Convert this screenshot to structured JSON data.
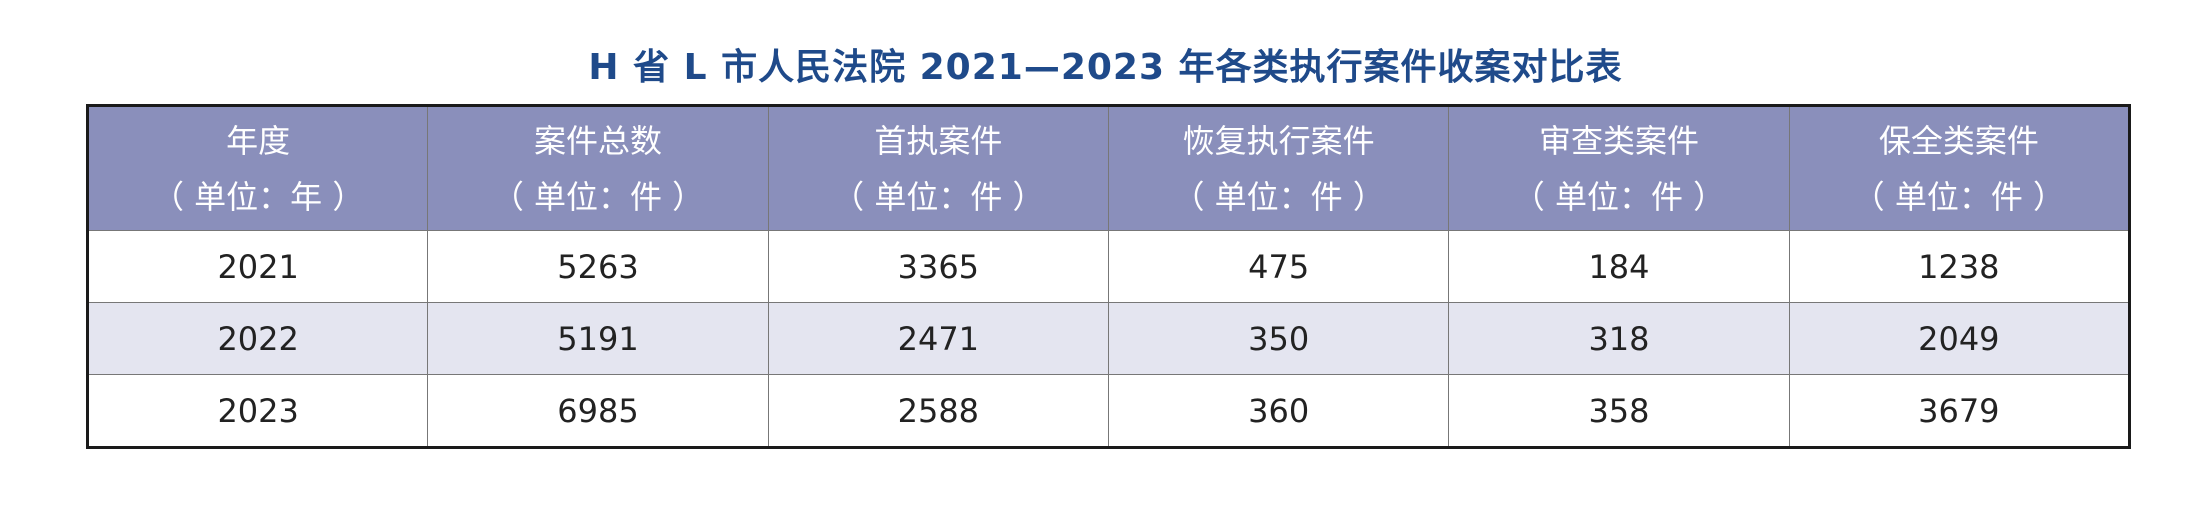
{
  "title": "H 省 L 市人民法院 2021—2023 年各类执行案件收案对比表",
  "colors": {
    "title": "#1f4a8a",
    "header_bg": "#8a8fbb",
    "header_text": "#ffffff",
    "alt_row_bg": "#e4e5f0",
    "border": "#1a1a1a"
  },
  "table": {
    "headers": [
      {
        "label": "年度",
        "unit": "（ 单位：年 ）"
      },
      {
        "label": "案件总数",
        "unit": "（ 单位：件 ）"
      },
      {
        "label": "首执案件",
        "unit": "（ 单位：件 ）"
      },
      {
        "label": "恢复执行案件",
        "unit": "（ 单位：件 ）"
      },
      {
        "label": "审查类案件",
        "unit": "（ 单位：件 ）"
      },
      {
        "label": "保全类案件",
        "unit": "（ 单位：件 ）"
      }
    ],
    "rows": [
      [
        "2021",
        "5263",
        "3365",
        "475",
        "184",
        "1238"
      ],
      [
        "2022",
        "5191",
        "2471",
        "350",
        "318",
        "2049"
      ],
      [
        "2023",
        "6985",
        "2588",
        "360",
        "358",
        "3679"
      ]
    ]
  }
}
